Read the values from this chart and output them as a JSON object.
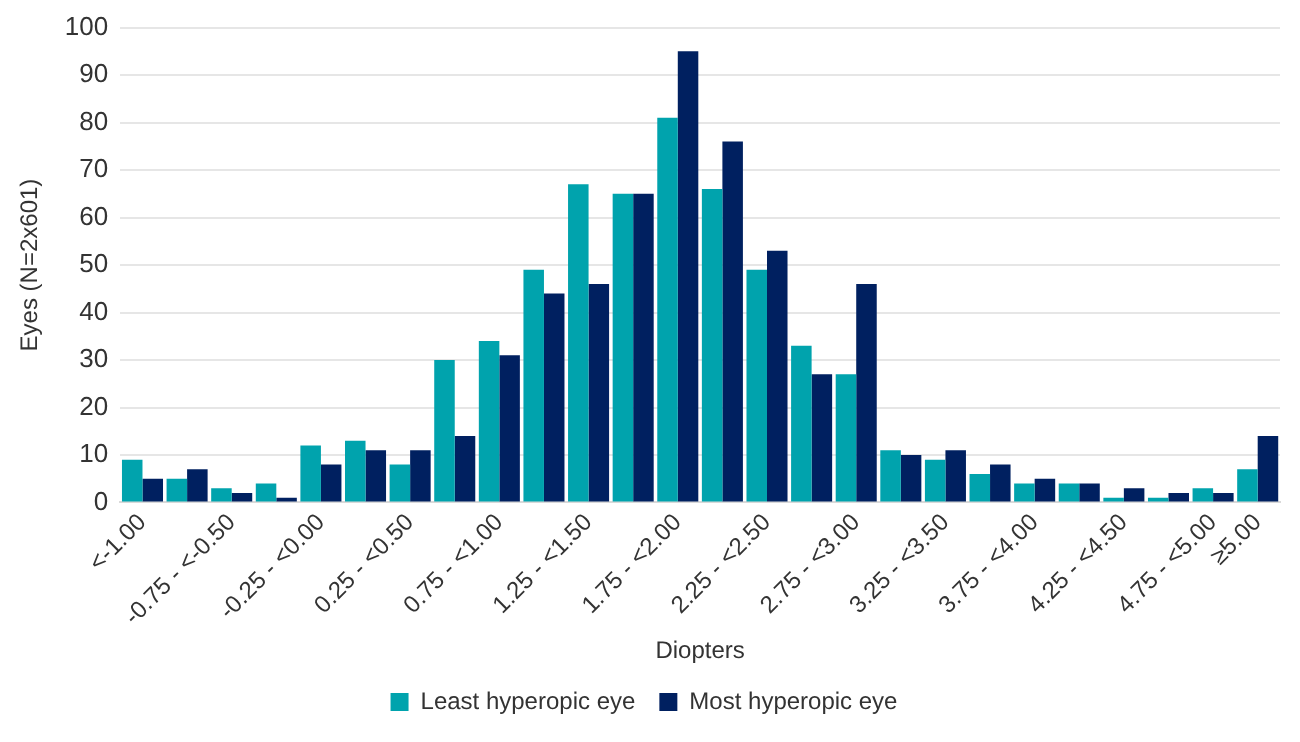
{
  "chart_data": {
    "type": "bar",
    "xlabel": "Diopters",
    "ylabel": "Eyes (N=2x601)",
    "categories": [
      "<-1.00",
      null,
      "-0.75 - <-0.50",
      null,
      "-0.25 - <0.00",
      null,
      "0.25 - <0.50",
      null,
      "0.75 - <1.00",
      null,
      "1.25 - <1.50",
      null,
      "1.75 - <2.00",
      null,
      "2.25 - <2.50",
      null,
      "2.75 - <3.00",
      null,
      "3.25 - <3.50",
      null,
      "3.75 - <4.00",
      null,
      "4.25 - <4.50",
      null,
      "4.75 - <5.00",
      "≥5.00"
    ],
    "series": [
      {
        "name": "Least hyperopic eye",
        "color": "#00a3ad",
        "values": [
          9,
          5,
          3,
          4,
          12,
          13,
          8,
          30,
          34,
          49,
          67,
          65,
          81,
          66,
          49,
          33,
          27,
          11,
          9,
          6,
          4,
          4,
          1,
          1,
          3,
          7
        ]
      },
      {
        "name": "Most hyperopic eye",
        "color": "#002060",
        "values": [
          5,
          7,
          2,
          1,
          8,
          11,
          11,
          14,
          31,
          44,
          46,
          65,
          95,
          76,
          53,
          27,
          46,
          10,
          11,
          8,
          5,
          4,
          3,
          2,
          2,
          14
        ]
      }
    ],
    "ylim": [
      0,
      100
    ],
    "yticks": [
      0,
      10,
      20,
      30,
      40,
      50,
      60,
      70,
      80,
      90,
      100
    ],
    "grid": "y",
    "legend": "bottom"
  }
}
